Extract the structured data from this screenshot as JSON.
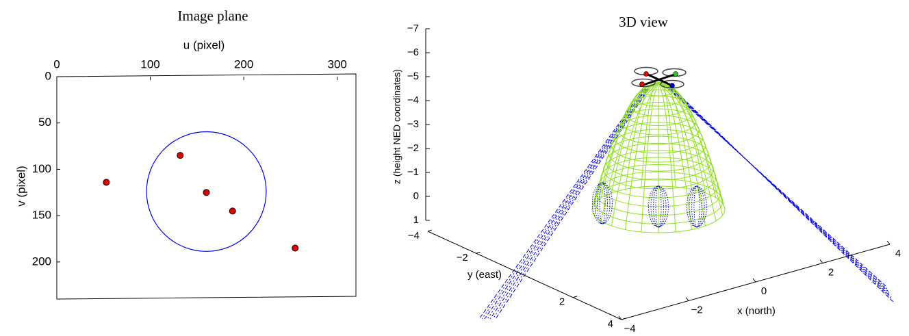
{
  "chart_data": [
    {
      "type": "scatter",
      "title": "Image plane",
      "xlabel": "u (pixel)",
      "ylabel": "v (pixel)",
      "x": [
        53,
        132,
        160,
        188,
        255
      ],
      "values": [
        114,
        85,
        125,
        145,
        185
      ],
      "color": "#e00000",
      "circle": {
        "center": [
          160,
          124
        ],
        "radius": 64,
        "color": "#0000e0"
      },
      "xlim": [
        0,
        320
      ],
      "xticks": [
        0,
        100,
        200,
        300
      ],
      "ylim": [
        0,
        240
      ],
      "yticks": [
        0,
        50,
        100,
        150,
        200
      ],
      "y_reversed": true,
      "x_axis_top": true
    },
    {
      "type": "3d",
      "title": "3D view",
      "xlabel": "x  (north)",
      "ylabel": "y (east)",
      "zlabel": "z (height NED coordinates)",
      "zlim": [
        -7,
        1
      ],
      "zticks": [
        {
          "value": -7,
          "label": "−7"
        },
        {
          "value": -6,
          "label": "−6"
        },
        {
          "value": -5,
          "label": "−5"
        },
        {
          "value": -4,
          "label": "−4"
        },
        {
          "value": -3,
          "label": "−3"
        },
        {
          "value": -2,
          "label": "−2"
        },
        {
          "value": -1,
          "label": "−1"
        },
        0,
        1
      ],
      "ylim": [
        -4,
        4
      ],
      "yticks": [
        {
          "value": -4,
          "label": "−4"
        },
        {
          "value": -2,
          "label": "−2"
        },
        2,
        4
      ],
      "xlim": [
        -4,
        4
      ],
      "xticks": [
        {
          "value": -4,
          "label": "−4"
        },
        {
          "value": -2,
          "label": "−2"
        },
        0,
        2,
        4
      ]
    }
  ]
}
